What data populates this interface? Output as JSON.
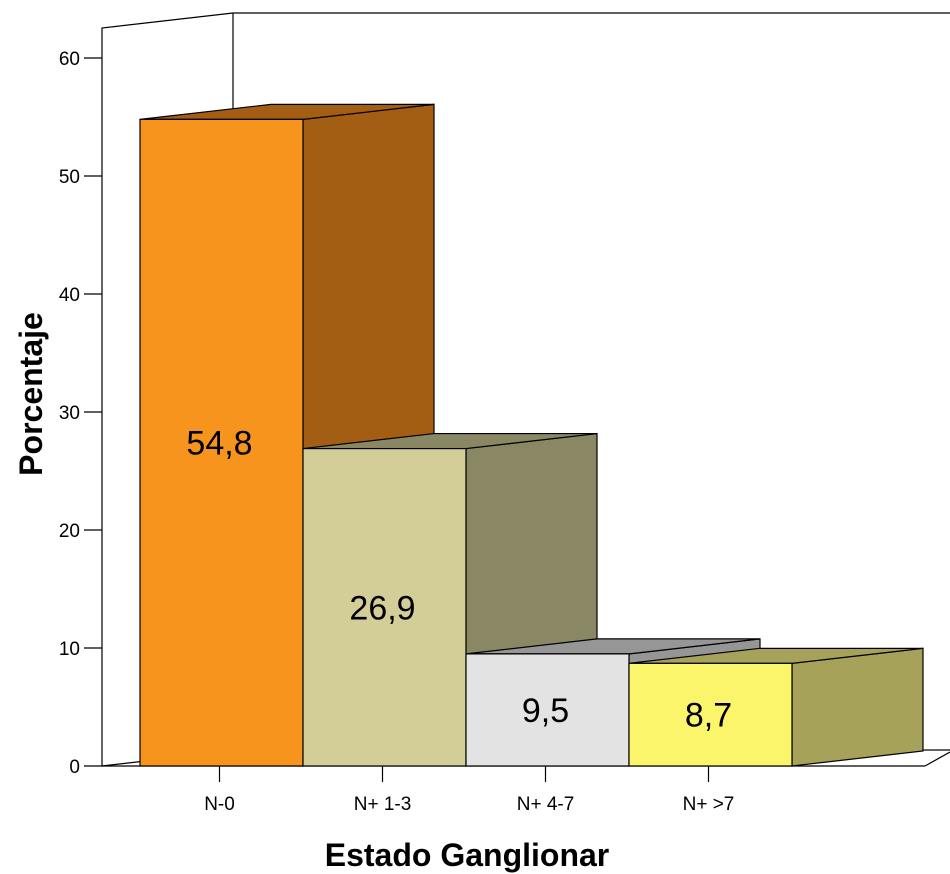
{
  "chart_data": {
    "type": "bar",
    "style": "3d",
    "title": "",
    "xlabel": "Estado Ganglionar",
    "ylabel": "Porcentaje",
    "ylim": [
      0,
      60
    ],
    "yticks": [
      0,
      10,
      20,
      30,
      40,
      50,
      60
    ],
    "categories": [
      "N-0",
      "N+ 1-3",
      "N+ 4-7",
      "N+ >7"
    ],
    "values": [
      54.8,
      26.9,
      9.5,
      8.7
    ],
    "value_labels": [
      "54,8",
      "26,9",
      "9,5",
      "8,7"
    ],
    "bar_colors": [
      "#f7941d",
      "#d3cd97",
      "#e3e3e3",
      "#fbf56b"
    ],
    "side_colors": [
      "#a35e14",
      "#8a8764",
      "#969696",
      "#a6a25a"
    ],
    "top_colors": [
      "#a35e14",
      "#8a8764",
      "#969696",
      "#a6a25a"
    ],
    "grid": false,
    "legend": "none"
  }
}
